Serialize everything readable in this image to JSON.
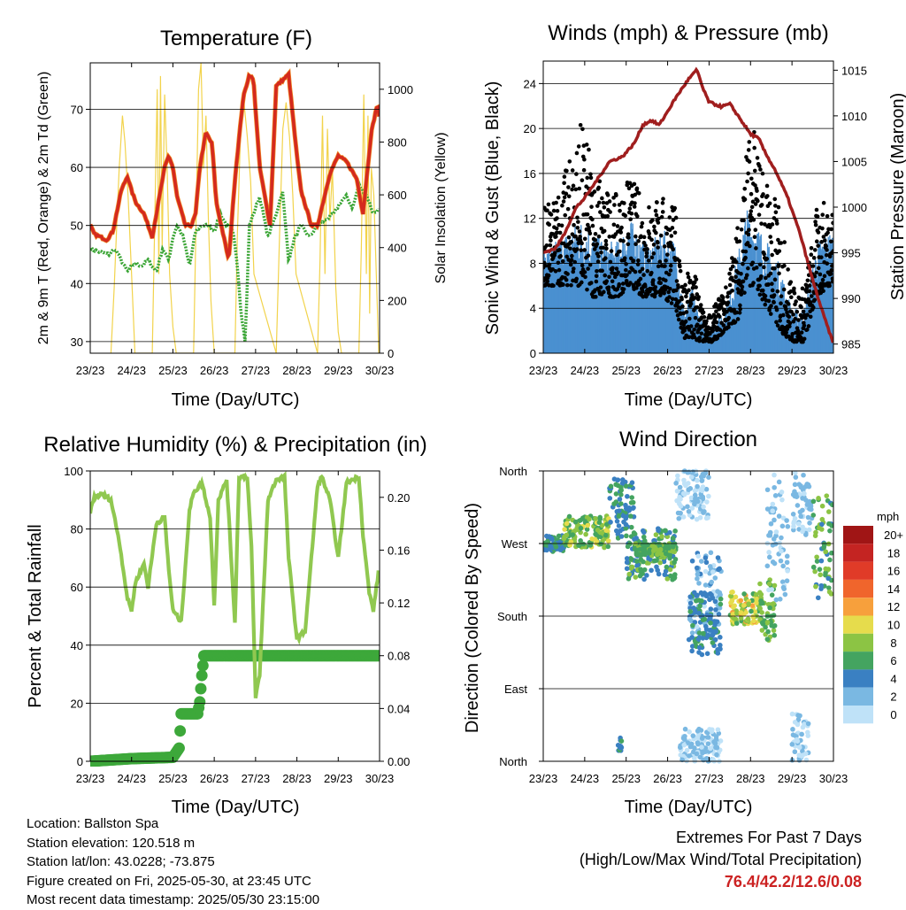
{
  "x_ticks": [
    "23/23",
    "24/23",
    "25/23",
    "26/23",
    "27/23",
    "28/23",
    "29/23",
    "30/23"
  ],
  "x_label": "Time (Day/UTC)",
  "chart_data": [
    {
      "id": "temperature",
      "type": "line",
      "title": "Temperature (F)",
      "xlabel": "Time (Day/UTC)",
      "ylabel": "2m & 9m T (Red, Orange) & 2m Td (Green)",
      "ylabel_right": "Solar Insolation (Yellow)",
      "ylim": [
        28,
        78
      ],
      "yticks": [
        30,
        40,
        50,
        60,
        70
      ],
      "ylim_right": [
        0,
        1100
      ],
      "yticks_right": [
        0,
        200,
        400,
        600,
        800,
        1000
      ],
      "grid": true,
      "colors": {
        "t2m": "#d42a1e",
        "t9m": "#f08a24",
        "td": "#3aa535",
        "solar": "#f2d34c"
      },
      "series": [
        {
          "key": "t2m",
          "x": [
            0,
            0.1,
            0.25,
            0.4,
            0.55,
            0.75,
            0.9,
            1.0,
            1.1,
            1.3,
            1.5,
            1.6,
            1.8,
            1.9,
            2.0,
            2.1,
            2.3,
            2.45,
            2.55,
            2.65,
            2.8,
            2.95,
            3.05,
            3.2,
            3.35,
            3.5,
            3.7,
            3.85,
            3.95,
            4.1,
            4.35,
            4.5,
            4.8,
            5.0,
            5.1,
            5.35,
            5.5,
            5.8,
            6.0,
            6.2,
            6.45,
            6.6,
            6.8,
            6.95,
            7.0
          ],
          "values": [
            50,
            48.5,
            48,
            47.5,
            49,
            56,
            58.5,
            56,
            54,
            52,
            48,
            52,
            60,
            62,
            60,
            55,
            50,
            50,
            52,
            60,
            66,
            64,
            54,
            49,
            44,
            58,
            72,
            76,
            75,
            60,
            50,
            74,
            76,
            62,
            56,
            50,
            50,
            59,
            62,
            61,
            58,
            52,
            66,
            71,
            68
          ]
        },
        {
          "key": "td",
          "x": [
            0,
            0.2,
            0.45,
            0.6,
            0.75,
            0.9,
            1.0,
            1.1,
            1.25,
            1.4,
            1.6,
            1.75,
            1.9,
            2.0,
            2.1,
            2.25,
            2.4,
            2.55,
            2.7,
            2.85,
            3.0,
            3.15,
            3.3,
            3.45,
            3.55,
            3.65,
            3.75,
            3.85,
            3.95,
            4.1,
            4.3,
            4.5,
            4.65,
            4.8,
            4.95,
            5.1,
            5.3,
            5.5,
            5.7,
            5.9,
            6.05,
            6.2,
            6.35,
            6.5,
            6.7,
            6.85,
            7.0
          ],
          "values": [
            46,
            45.5,
            45,
            46,
            44,
            42,
            43,
            43.5,
            43,
            44,
            42,
            46,
            44,
            48,
            50,
            48,
            43,
            49,
            50,
            50,
            49,
            52,
            50,
            49,
            44,
            35,
            30,
            50,
            52,
            55,
            48,
            52,
            56,
            44,
            48,
            50,
            48,
            50,
            51,
            52,
            54,
            55,
            53,
            57,
            55,
            52,
            53
          ]
        },
        {
          "key": "solar",
          "x": [
            0.5,
            0.58,
            0.64,
            0.7,
            0.78,
            0.84,
            0.92,
            1.0,
            1.08,
            1.5,
            1.56,
            1.62,
            1.66,
            1.7,
            1.74,
            1.8,
            1.86,
            1.92,
            2.0,
            2.08,
            2.5,
            2.56,
            2.62,
            2.68,
            2.74,
            2.8,
            2.86,
            2.92,
            3.0,
            3.5,
            3.56,
            3.64,
            3.72,
            3.8,
            3.88,
            3.96,
            4.5,
            4.58,
            4.66,
            4.74,
            4.82,
            4.9,
            4.98,
            5.5,
            5.56,
            5.62,
            5.68,
            5.74,
            5.8,
            5.86,
            5.94,
            6.0,
            6.08,
            6.5,
            6.56,
            6.62,
            6.68,
            6.72,
            6.76,
            6.8,
            6.86,
            6.92,
            6.98
          ],
          "values": [
            0,
            250,
            480,
            700,
            900,
            800,
            580,
            300,
            0,
            0,
            500,
            1000,
            300,
            1050,
            400,
            980,
            700,
            300,
            100,
            0,
            0,
            500,
            1000,
            1100,
            700,
            900,
            500,
            200,
            0,
            0,
            450,
            850,
            950,
            820,
            650,
            300,
            0,
            450,
            850,
            950,
            820,
            600,
            300,
            0,
            350,
            900,
            300,
            850,
            500,
            700,
            250,
            80,
            0,
            0,
            400,
            980,
            300,
            900,
            150,
            700,
            600,
            300,
            0
          ]
        }
      ]
    },
    {
      "id": "winds",
      "type": "scatter",
      "title": "Winds (mph) & Pressure (mb)",
      "xlabel": "Time (Day/UTC)",
      "ylabel": "Sonic Wind & Gust (Blue, Black)",
      "ylabel_right": "Station Pressure (Maroon)",
      "ylim": [
        0,
        26
      ],
      "yticks": [
        0,
        4,
        8,
        12,
        16,
        20,
        24
      ],
      "ylim_right": [
        984,
        1016
      ],
      "yticks_right": [
        985,
        990,
        995,
        1000,
        1005,
        1010,
        1015
      ],
      "grid": true,
      "colors": {
        "wind": "#4a90d0",
        "gust": "#000000",
        "pressure": "#a01e1e"
      },
      "pressure": {
        "x": [
          0,
          0.3,
          0.5,
          0.8,
          1.0,
          1.3,
          1.6,
          1.9,
          2.2,
          2.4,
          2.6,
          2.8,
          3.0,
          3.2,
          3.5,
          3.7,
          3.75,
          3.85,
          4.0,
          4.3,
          4.5,
          4.7,
          5.0,
          5.2,
          5.35,
          5.6,
          5.9,
          6.2,
          6.5,
          6.7,
          7.0
        ],
        "values": [
          995,
          995.5,
          997,
          1000,
          1001,
          1003,
          1005,
          1005.5,
          1007,
          1009,
          1009.5,
          1009,
          1010.5,
          1012,
          1014,
          1015,
          1014.5,
          1013,
          1011.5,
          1011,
          1011.3,
          1010,
          1008,
          1007.5,
          1006,
          1004,
          1001,
          997,
          992,
          989,
          985
        ]
      },
      "wind_envelope": {
        "x": [
          0,
          0.3,
          0.6,
          0.9,
          1.2,
          1.5,
          1.8,
          2.1,
          2.4,
          2.6,
          2.9,
          3.2,
          3.4,
          3.6,
          3.9,
          4.1,
          4.4,
          4.7,
          4.9,
          5.1,
          5.4,
          5.7,
          6.0,
          6.3,
          6.6,
          6.9,
          7.0
        ],
        "low": [
          6,
          5,
          4,
          4,
          3,
          3,
          4,
          5,
          4,
          4,
          4,
          3,
          0,
          0,
          0,
          0,
          1,
          2,
          4,
          4,
          3,
          1,
          0,
          0,
          3,
          4,
          4
        ],
        "high": [
          9,
          10,
          11,
          12,
          11,
          10,
          10,
          12,
          10,
          10,
          11,
          10,
          4,
          6,
          2,
          3,
          4,
          9,
          13,
          12,
          10,
          8,
          4,
          4,
          10,
          11,
          11
        ]
      },
      "gust_envelope": {
        "x": [
          0,
          0.3,
          0.6,
          0.9,
          1.2,
          1.5,
          1.8,
          2.1,
          2.4,
          2.6,
          2.9,
          3.2,
          3.4,
          3.6,
          3.9,
          4.1,
          4.4,
          4.7,
          4.9,
          5.1,
          5.4,
          5.7,
          6.0,
          6.3,
          6.6,
          6.9,
          7.0
        ],
        "low": [
          6,
          6,
          6,
          6,
          5,
          5,
          5,
          6,
          5,
          5,
          5,
          4,
          1,
          1,
          1,
          1,
          2,
          3,
          6,
          6,
          4,
          2,
          1,
          1,
          5,
          6,
          6
        ],
        "high": [
          13,
          14,
          17,
          21,
          17,
          15,
          14,
          16,
          14,
          14,
          14,
          13,
          6,
          9,
          3,
          4,
          6,
          12,
          19,
          20,
          16,
          13,
          6,
          6,
          13,
          14,
          13
        ]
      }
    },
    {
      "id": "humidity",
      "type": "line",
      "title": "Relative Humidity (%) & Precipitation (in)",
      "xlabel": "Time (Day/UTC)",
      "ylabel": "Percent & Total Rainfall",
      "ylim": [
        0,
        100
      ],
      "yticks": [
        0,
        20,
        40,
        60,
        80,
        100
      ],
      "ylim_right": [
        0,
        0.22
      ],
      "yticks_right": [
        0.0,
        0.04,
        0.08,
        0.12,
        0.16,
        0.2
      ],
      "yticklabels_right": [
        "0.00",
        "0.04",
        "0.08",
        "0.12",
        "0.16",
        "0.20"
      ],
      "grid": true,
      "colors": {
        "rh": "#90c850",
        "precip": "#3da83a"
      },
      "series": [
        {
          "key": "rh",
          "x": [
            0,
            0.1,
            0.3,
            0.5,
            0.7,
            0.9,
            1.0,
            1.1,
            1.3,
            1.4,
            1.6,
            1.8,
            1.9,
            2.0,
            2.2,
            2.4,
            2.5,
            2.6,
            2.7,
            2.9,
            3.0,
            3.1,
            3.3,
            3.5,
            3.6,
            3.8,
            3.9,
            4.0,
            4.1,
            4.3,
            4.5,
            4.7,
            4.8,
            5.0,
            5.2,
            5.5,
            5.6,
            5.8,
            6.0,
            6.2,
            6.5,
            6.6,
            6.75,
            6.85,
            7.0
          ],
          "values": [
            86,
            91,
            92,
            90,
            76,
            56,
            52,
            62,
            68,
            60,
            82,
            84,
            66,
            52,
            48,
            86,
            93,
            94,
            96,
            84,
            54,
            90,
            97,
            48,
            98,
            98,
            74,
            22,
            30,
            90,
            97,
            98,
            70,
            42,
            45,
            95,
            98,
            90,
            70,
            96,
            98,
            78,
            58,
            52,
            68
          ]
        },
        {
          "key": "precip",
          "x": [
            0,
            1.0,
            2.0,
            2.15,
            2.2,
            2.3,
            2.5,
            2.6,
            2.65,
            2.7,
            2.75,
            2.8,
            3.0,
            4.0,
            5.0,
            6.0,
            7.0
          ],
          "values": [
            0,
            0.002,
            0.003,
            0.01,
            0.036,
            0.036,
            0.036,
            0.036,
            0.045,
            0.065,
            0.08,
            0.08,
            0.08,
            0.08,
            0.08,
            0.08,
            0.08
          ]
        }
      ]
    },
    {
      "id": "wind_direction",
      "type": "scatter",
      "title": "Wind Direction",
      "xlabel": "Time (Day/UTC)",
      "ylabel": "Direction (Colored By Speed)",
      "yticks": [
        "North",
        "East",
        "South",
        "West",
        "North"
      ],
      "ylim_deg": [
        0,
        360
      ],
      "grid": true,
      "colorbar": {
        "unit": "mph",
        "labels": [
          "20+",
          "18",
          "16",
          "14",
          "12",
          "10",
          "8",
          "6",
          "4",
          "2",
          "0"
        ],
        "colors": [
          "#a01515",
          "#c42422",
          "#e03b28",
          "#f0652c",
          "#f7a03c",
          "#e6dc4c",
          "#8cc444",
          "#44a460",
          "#3a80c2",
          "#7ab8e2",
          "#bfe2f8"
        ]
      },
      "clusters": [
        {
          "x": [
            0,
            0.5
          ],
          "deg": [
            260,
            280
          ],
          "speed": [
            3,
            7
          ]
        },
        {
          "x": [
            0.5,
            1.6
          ],
          "deg": [
            265,
            305
          ],
          "speed": [
            5,
            10
          ]
        },
        {
          "x": [
            1.6,
            2.2
          ],
          "deg": [
            275,
            350
          ],
          "speed": [
            3,
            6
          ]
        },
        {
          "x": [
            2.0,
            3.2
          ],
          "deg": [
            225,
            290
          ],
          "speed": [
            3,
            8
          ]
        },
        {
          "x": [
            2.2,
            3.2
          ],
          "deg": [
            255,
            270
          ],
          "speed": [
            5,
            8
          ]
        },
        {
          "x": [
            1.8,
            1.9
          ],
          "deg": [
            5,
            30
          ],
          "speed": [
            3,
            6
          ]
        },
        {
          "x": [
            3.2,
            4.0
          ],
          "deg": [
            300,
            360
          ],
          "speed": [
            0,
            2
          ]
        },
        {
          "x": [
            3.3,
            4.3
          ],
          "deg": [
            0,
            40
          ],
          "speed": [
            0,
            2
          ]
        },
        {
          "x": [
            3.5,
            4.3
          ],
          "deg": [
            150,
            260
          ],
          "speed": [
            0,
            4
          ]
        },
        {
          "x": [
            3.5,
            4.3
          ],
          "deg": [
            130,
            210
          ],
          "speed": [
            3,
            6
          ]
        },
        {
          "x": [
            4.5,
            5.3
          ],
          "deg": [
            170,
            210
          ],
          "speed": [
            6,
            12
          ]
        },
        {
          "x": [
            5.2,
            5.6
          ],
          "deg": [
            150,
            225
          ],
          "speed": [
            5,
            9
          ]
        },
        {
          "x": [
            5.4,
            5.9
          ],
          "deg": [
            200,
            360
          ],
          "speed": [
            0,
            3
          ]
        },
        {
          "x": [
            6.0,
            6.4
          ],
          "deg": [
            0,
            60
          ],
          "speed": [
            0,
            2
          ]
        },
        {
          "x": [
            6.0,
            6.5
          ],
          "deg": [
            280,
            360
          ],
          "speed": [
            0,
            3
          ]
        },
        {
          "x": [
            6.5,
            7.0
          ],
          "deg": [
            200,
            330
          ],
          "speed": [
            4,
            9
          ]
        }
      ]
    }
  ],
  "footer": {
    "location": "Location: Ballston Spa",
    "elevation": "Station elevation: 120.518 m",
    "latlon": "Station lat/lon: 43.0228; -73.875",
    "created": "Figure created on Fri, 2025-05-30, at 23:45 UTC",
    "recent": "Most recent data timestamp: 2025/05/30 23:15:00"
  },
  "extremes": {
    "title": "Extremes For Past 7 Days",
    "subtitle": "(High/Low/Max Wind/Total Precipitation)",
    "values": "76.4/42.2/12.6/0.08"
  }
}
